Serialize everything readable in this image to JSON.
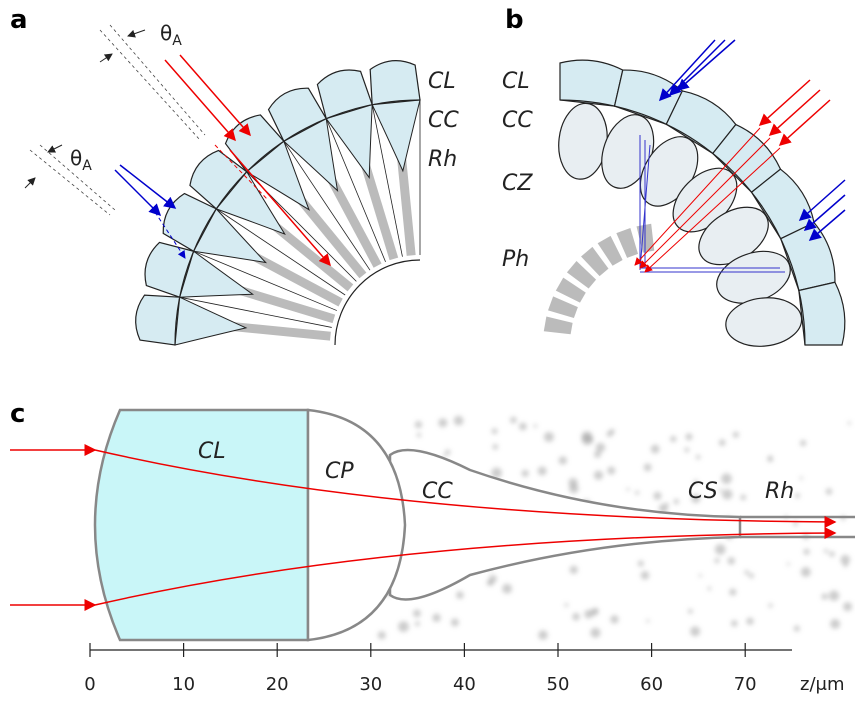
{
  "panel_a": {
    "label": "a",
    "theta_labels": [
      {
        "symbol": "θ",
        "subscript": "A"
      },
      {
        "symbol": "θ",
        "subscript": "A"
      }
    ],
    "layers": [
      "CL",
      "CC",
      "Rh"
    ]
  },
  "panel_b": {
    "label": "b",
    "layers": [
      "CL",
      "CC",
      "CZ",
      "Ph"
    ]
  },
  "panel_c": {
    "label": "c",
    "regions": [
      "CL",
      "CP",
      "CC",
      "CS",
      "Rh"
    ],
    "axis": {
      "label": "z/μm",
      "xlim": [
        0,
        75
      ],
      "xticks": [
        0,
        10,
        20,
        30,
        40,
        50,
        60,
        70
      ]
    }
  }
}
